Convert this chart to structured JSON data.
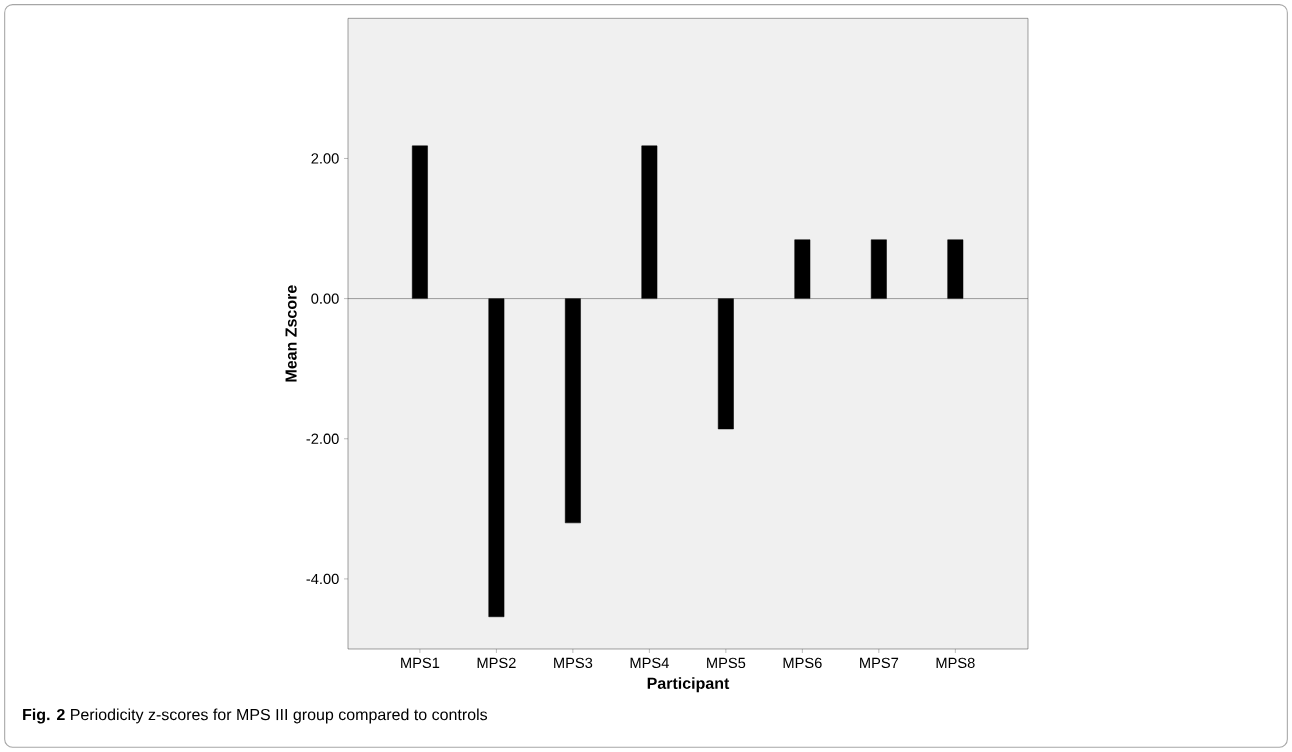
{
  "chart_data": {
    "type": "bar",
    "xlabel": "Participant",
    "ylabel": "Mean Zscore",
    "categories": [
      "MPS1",
      "MPS2",
      "MPS3",
      "MPS4",
      "MPS5",
      "MPS6",
      "MPS7",
      "MPS8"
    ],
    "values": [
      2.18,
      -4.54,
      -3.2,
      2.18,
      -1.86,
      0.84,
      0.84,
      0.84
    ],
    "color": "#000000",
    "ylim": [
      -5,
      4
    ],
    "yticks": [
      {
        "value": -4,
        "label": "-4.00"
      },
      {
        "value": -2,
        "label": "-2.00"
      },
      {
        "value": 0,
        "label": "0.00"
      },
      {
        "value": 2,
        "label": "2.00"
      }
    ],
    "annotations": [
      "**Fig. 2** Periodicity z-scores for MPS III group compared to controls"
    ]
  }
}
